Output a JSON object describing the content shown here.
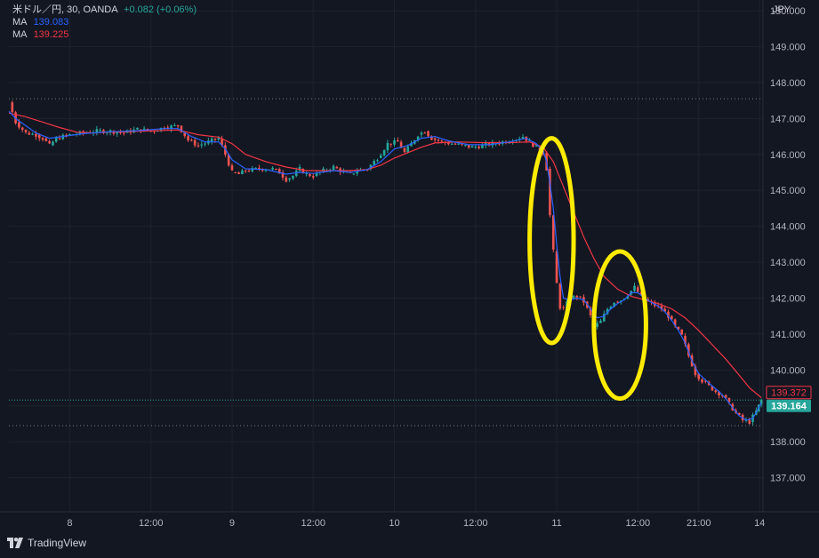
{
  "header": {
    "symbol": "米ドル／円, 30, OANDA",
    "change": "+0.082 (+0.06%)",
    "ma1_label": "MA",
    "ma1_value": "139.083",
    "ma2_label": "MA",
    "ma2_value": "139.225"
  },
  "brand": "TradingView",
  "colors": {
    "background": "#131722",
    "up": "#26a69a",
    "down": "#ef5350",
    "ma_fast": "#2962ff",
    "ma_slow": "#f23645",
    "highlight_ellipse": "#ffeb00"
  },
  "chart_data": {
    "type": "candlestick",
    "currency_label": "JPY",
    "y_ticks": [
      "137.000",
      "138.000",
      "139.000",
      "140.000",
      "141.000",
      "142.000",
      "143.000",
      "144.000",
      "145.000",
      "146.000",
      "147.000",
      "148.000",
      "149.000",
      "150.000"
    ],
    "ylim": [
      136.05,
      150.3
    ],
    "x_ticks": [
      {
        "label": "8",
        "x": 18
      },
      {
        "label": "12:00",
        "x": 42
      },
      {
        "label": "9",
        "x": 66
      },
      {
        "label": "12:00",
        "x": 90
      },
      {
        "label": "10",
        "x": 114
      },
      {
        "label": "12:00",
        "x": 138
      },
      {
        "label": "11",
        "x": 162
      },
      {
        "label": "12:00",
        "x": 186
      },
      {
        "label": "21:00",
        "x": 204
      },
      {
        "label": "14",
        "x": 222
      }
    ],
    "xlim": [
      0,
      223
    ],
    "dotted_levels": [
      147.55,
      138.45
    ],
    "current_price_line": 139.16,
    "price_labels": [
      {
        "value": "139.372",
        "kind": "ma"
      },
      {
        "value": "139.164",
        "kind": "last"
      }
    ],
    "close_path": [
      [
        0,
        147.45
      ],
      [
        2,
        146.9
      ],
      [
        5,
        146.6
      ],
      [
        8,
        146.55
      ],
      [
        10,
        146.45
      ],
      [
        12,
        146.25
      ],
      [
        14,
        146.45
      ],
      [
        18,
        146.55
      ],
      [
        22,
        146.6
      ],
      [
        26,
        146.65
      ],
      [
        30,
        146.65
      ],
      [
        34,
        146.6
      ],
      [
        38,
        146.7
      ],
      [
        42,
        146.65
      ],
      [
        46,
        146.75
      ],
      [
        50,
        146.8
      ],
      [
        53,
        146.4
      ],
      [
        56,
        146.25
      ],
      [
        59,
        146.35
      ],
      [
        62,
        146.45
      ],
      [
        64,
        146.0
      ],
      [
        66,
        145.5
      ],
      [
        68,
        145.45
      ],
      [
        70,
        145.55
      ],
      [
        74,
        145.6
      ],
      [
        78,
        145.6
      ],
      [
        80,
        145.5
      ],
      [
        82,
        145.3
      ],
      [
        84,
        145.4
      ],
      [
        86,
        145.6
      ],
      [
        88,
        145.45
      ],
      [
        90,
        145.4
      ],
      [
        93,
        145.55
      ],
      [
        96,
        145.65
      ],
      [
        99,
        145.5
      ],
      [
        101,
        145.45
      ],
      [
        103,
        145.55
      ],
      [
        106,
        145.6
      ],
      [
        109,
        145.9
      ],
      [
        112,
        146.3
      ],
      [
        115,
        146.35
      ],
      [
        117,
        146.05
      ],
      [
        119,
        146.3
      ],
      [
        121,
        146.55
      ],
      [
        123,
        146.65
      ],
      [
        125,
        146.45
      ],
      [
        128,
        146.35
      ],
      [
        131,
        146.3
      ],
      [
        134,
        146.25
      ],
      [
        137,
        146.2
      ],
      [
        140,
        146.25
      ],
      [
        143,
        146.3
      ],
      [
        146,
        146.35
      ],
      [
        149,
        146.4
      ],
      [
        152,
        146.5
      ],
      [
        154,
        146.35
      ],
      [
        156,
        146.2
      ],
      [
        158,
        146.05
      ],
      [
        159,
        145.6
      ],
      [
        160,
        144.3
      ],
      [
        161,
        143.3
      ],
      [
        162,
        142.4
      ],
      [
        163,
        141.75
      ],
      [
        164,
        141.7
      ],
      [
        166,
        142.0
      ],
      [
        168,
        142.05
      ],
      [
        170,
        141.9
      ],
      [
        172,
        141.5
      ],
      [
        173,
        141.2
      ],
      [
        175,
        141.35
      ],
      [
        177,
        141.7
      ],
      [
        179,
        141.9
      ],
      [
        181,
        141.95
      ],
      [
        183,
        142.1
      ],
      [
        185,
        142.3
      ],
      [
        187,
        142.05
      ],
      [
        189,
        141.9
      ],
      [
        191,
        141.8
      ],
      [
        193,
        141.7
      ],
      [
        195,
        141.5
      ],
      [
        197,
        141.2
      ],
      [
        199,
        140.95
      ],
      [
        201,
        140.4
      ],
      [
        203,
        139.9
      ],
      [
        205,
        139.7
      ],
      [
        207,
        139.55
      ],
      [
        209,
        139.4
      ],
      [
        211,
        139.3
      ],
      [
        213,
        139.05
      ],
      [
        215,
        138.8
      ],
      [
        217,
        138.6
      ],
      [
        219,
        138.55
      ],
      [
        221,
        138.85
      ],
      [
        222.5,
        139.16
      ]
    ],
    "ma_fast_path": [
      [
        0,
        147.2
      ],
      [
        2,
        147.0
      ],
      [
        5,
        146.8
      ],
      [
        8,
        146.6
      ],
      [
        12,
        146.45
      ],
      [
        16,
        146.5
      ],
      [
        22,
        146.58
      ],
      [
        30,
        146.63
      ],
      [
        38,
        146.66
      ],
      [
        46,
        146.72
      ],
      [
        50,
        146.72
      ],
      [
        54,
        146.5
      ],
      [
        58,
        146.35
      ],
      [
        62,
        146.35
      ],
      [
        64,
        146.15
      ],
      [
        66,
        145.85
      ],
      [
        70,
        145.6
      ],
      [
        76,
        145.58
      ],
      [
        82,
        145.45
      ],
      [
        86,
        145.5
      ],
      [
        90,
        145.47
      ],
      [
        96,
        145.55
      ],
      [
        101,
        145.5
      ],
      [
        106,
        145.58
      ],
      [
        110,
        145.8
      ],
      [
        114,
        146.15
      ],
      [
        118,
        146.25
      ],
      [
        122,
        146.45
      ],
      [
        126,
        146.5
      ],
      [
        130,
        146.38
      ],
      [
        136,
        146.27
      ],
      [
        142,
        146.27
      ],
      [
        148,
        146.35
      ],
      [
        153,
        146.45
      ],
      [
        156,
        146.3
      ],
      [
        158,
        146.1
      ],
      [
        159,
        145.8
      ],
      [
        160,
        145.2
      ],
      [
        161,
        144.5
      ],
      [
        162,
        143.5
      ],
      [
        163,
        142.6
      ],
      [
        164,
        142.0
      ],
      [
        166,
        141.95
      ],
      [
        168,
        142.0
      ],
      [
        170,
        141.95
      ],
      [
        172,
        141.7
      ],
      [
        174,
        141.45
      ],
      [
        176,
        141.5
      ],
      [
        178,
        141.7
      ],
      [
        180,
        141.85
      ],
      [
        182,
        141.95
      ],
      [
        184,
        142.15
      ],
      [
        186,
        142.15
      ],
      [
        188,
        142.0
      ],
      [
        190,
        141.88
      ],
      [
        192,
        141.78
      ],
      [
        194,
        141.62
      ],
      [
        196,
        141.38
      ],
      [
        198,
        141.1
      ],
      [
        200,
        140.75
      ],
      [
        202,
        140.25
      ],
      [
        204,
        139.9
      ],
      [
        206,
        139.72
      ],
      [
        208,
        139.55
      ],
      [
        210,
        139.4
      ],
      [
        212,
        139.2
      ],
      [
        214,
        138.95
      ],
      [
        216,
        138.72
      ],
      [
        218,
        138.6
      ],
      [
        220,
        138.65
      ],
      [
        222.5,
        139.08
      ]
    ],
    "ma_slow_path": [
      [
        0,
        147.15
      ],
      [
        5,
        147.05
      ],
      [
        10,
        146.9
      ],
      [
        15,
        146.75
      ],
      [
        20,
        146.62
      ],
      [
        25,
        146.6
      ],
      [
        30,
        146.62
      ],
      [
        40,
        146.65
      ],
      [
        50,
        146.68
      ],
      [
        56,
        146.55
      ],
      [
        62,
        146.48
      ],
      [
        66,
        146.3
      ],
      [
        70,
        146.0
      ],
      [
        76,
        145.8
      ],
      [
        82,
        145.65
      ],
      [
        88,
        145.55
      ],
      [
        94,
        145.55
      ],
      [
        100,
        145.55
      ],
      [
        106,
        145.58
      ],
      [
        110,
        145.7
      ],
      [
        114,
        145.9
      ],
      [
        118,
        146.05
      ],
      [
        122,
        146.2
      ],
      [
        126,
        146.32
      ],
      [
        132,
        146.35
      ],
      [
        140,
        146.33
      ],
      [
        148,
        146.33
      ],
      [
        154,
        146.35
      ],
      [
        158,
        146.2
      ],
      [
        161,
        145.8
      ],
      [
        164,
        145.1
      ],
      [
        167,
        144.4
      ],
      [
        170,
        143.7
      ],
      [
        173,
        143.1
      ],
      [
        176,
        142.6
      ],
      [
        180,
        142.25
      ],
      [
        184,
        142.05
      ],
      [
        188,
        141.95
      ],
      [
        192,
        141.85
      ],
      [
        196,
        141.7
      ],
      [
        200,
        141.45
      ],
      [
        204,
        141.1
      ],
      [
        208,
        140.7
      ],
      [
        212,
        140.3
      ],
      [
        216,
        139.85
      ],
      [
        219,
        139.5
      ],
      [
        222.5,
        139.23
      ]
    ],
    "annotations": [
      {
        "shape": "ellipse",
        "cx": 160.5,
        "cy": 143.6,
        "rx": 6.5,
        "ry": 2.85
      },
      {
        "shape": "ellipse",
        "cx": 180.7,
        "cy": 141.25,
        "rx": 7.7,
        "ry": 2.05
      }
    ]
  }
}
